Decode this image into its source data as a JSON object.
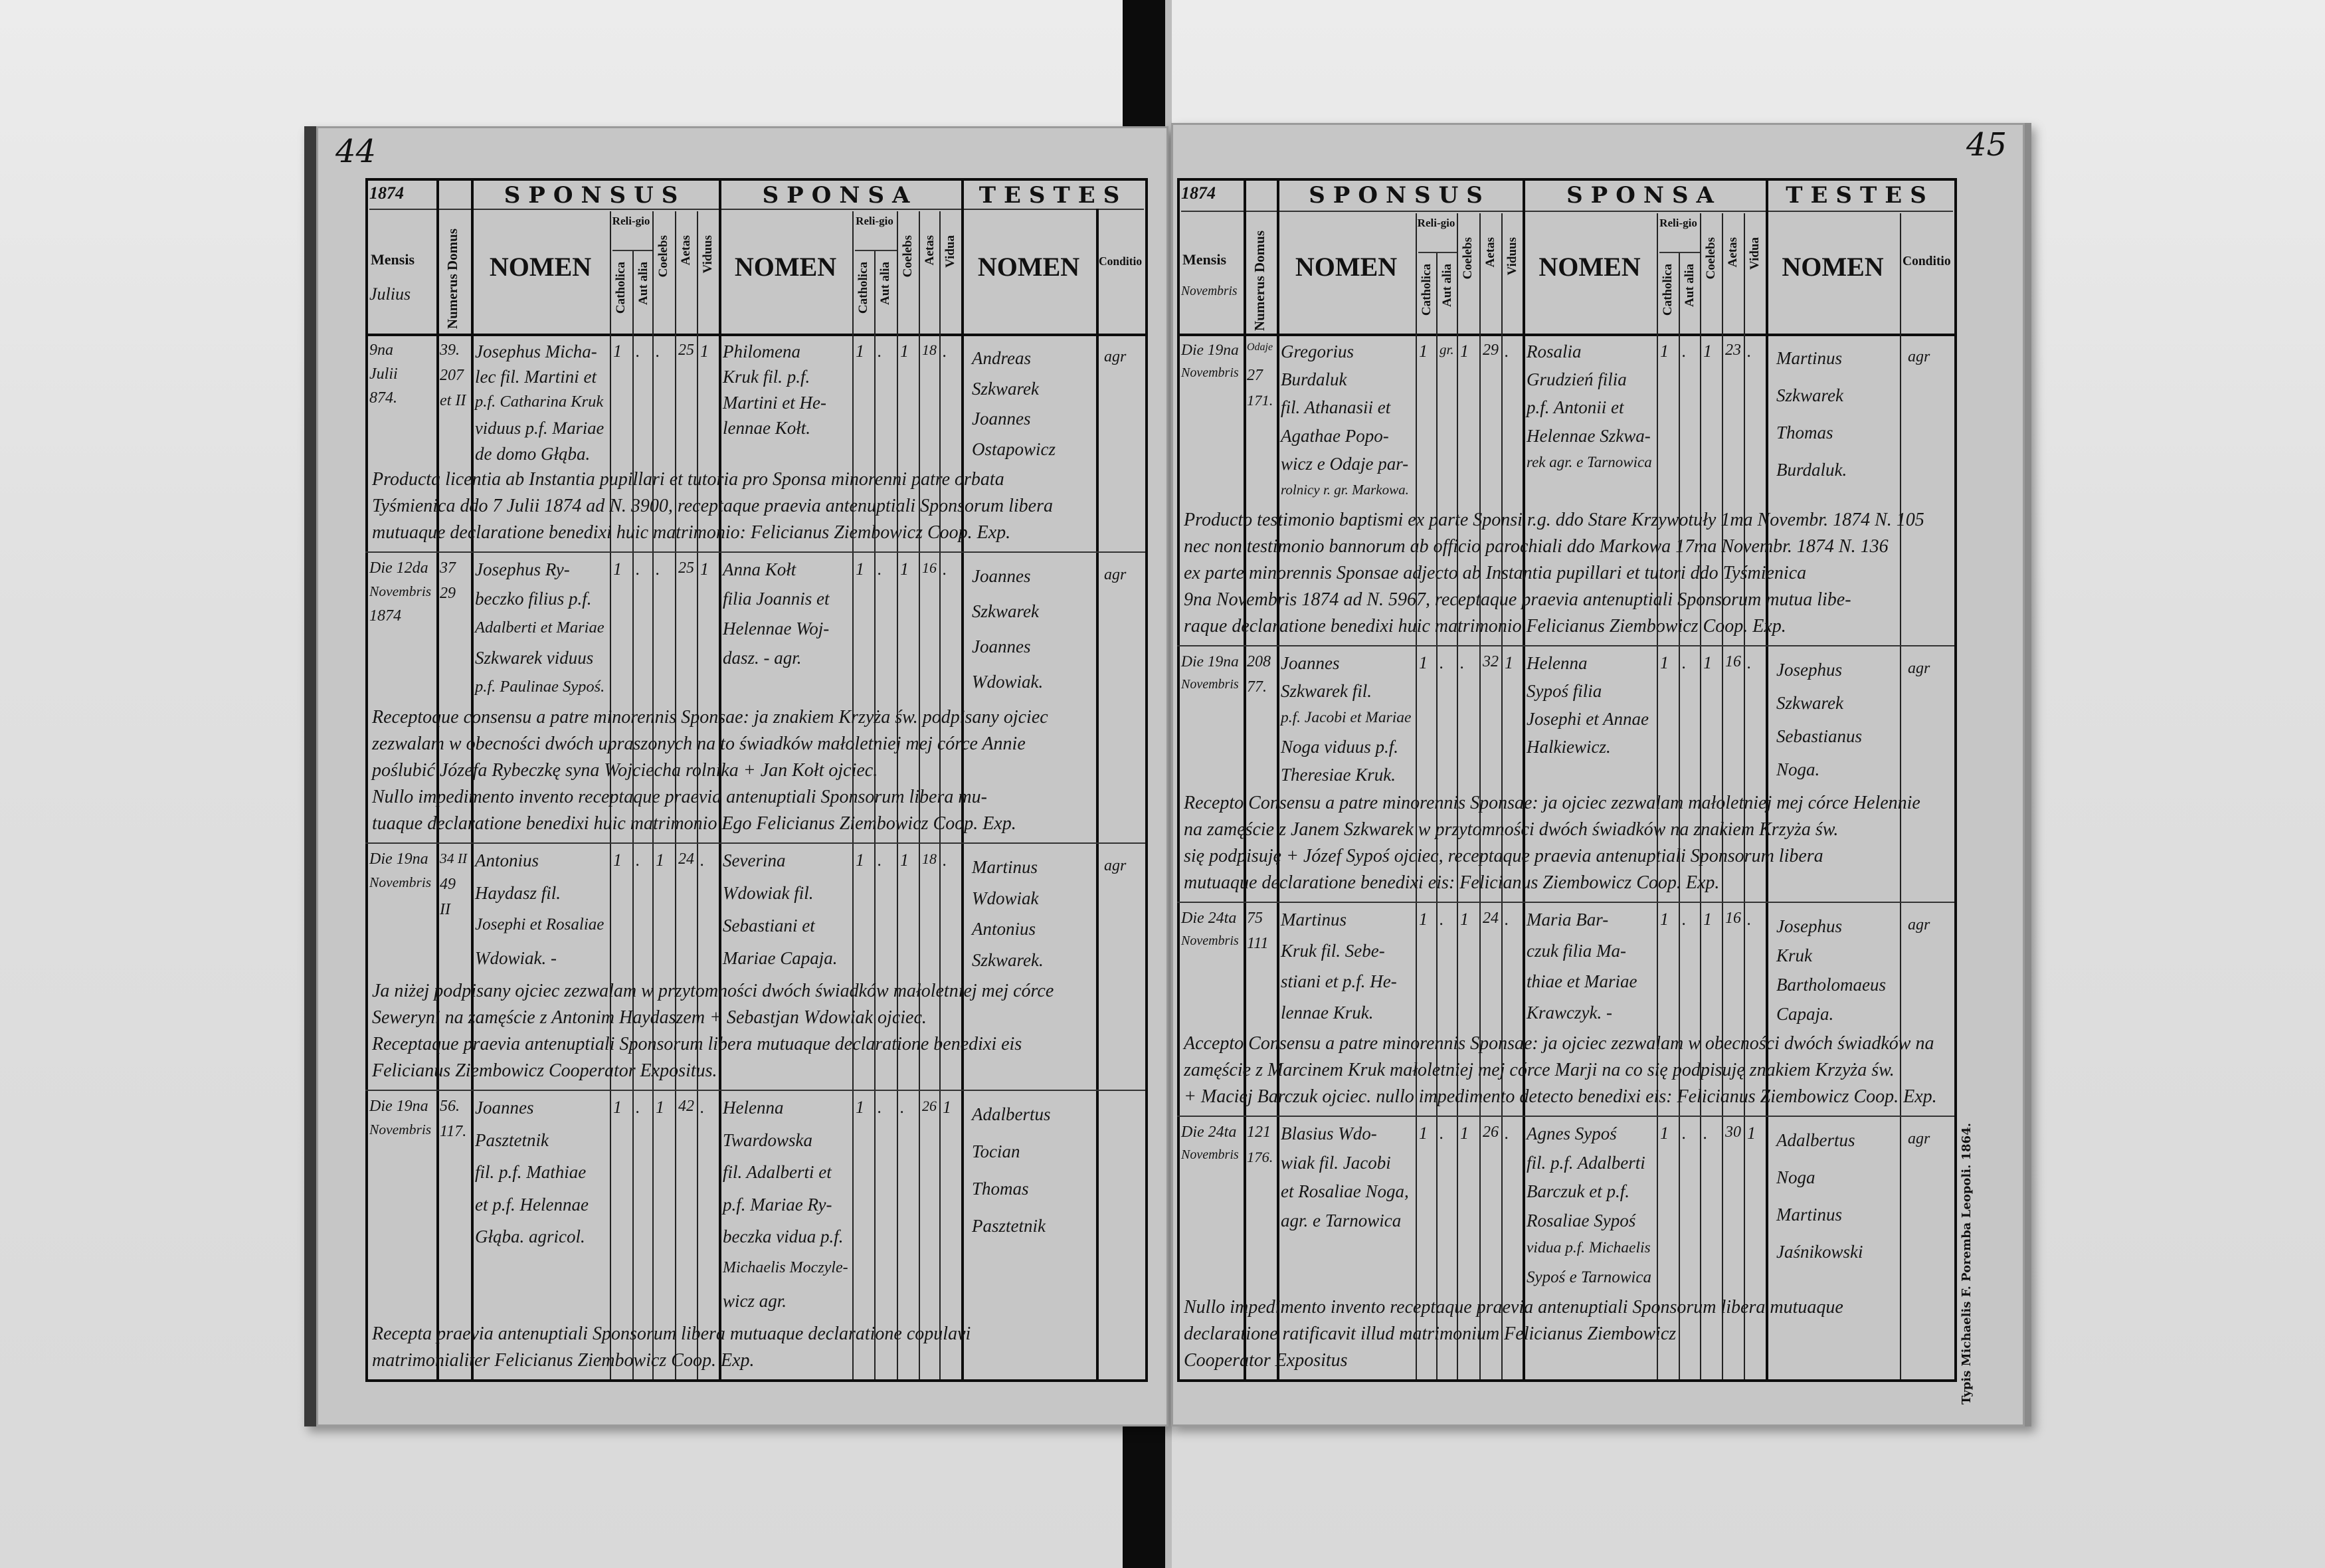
{
  "header": {
    "sponsus": "SPONSUS",
    "sponsa": "SPONSA",
    "testes": "TESTES",
    "nomen": "NOMEN",
    "mensis": "Mensis",
    "numerus_domus": "Numerus Domus",
    "religio": "Reli-gio",
    "catholica": "Catholica",
    "aut_alia": "Aut alia",
    "coelebs": "Coelebs",
    "aetas": "Aetas",
    "viduus": "Viduus",
    "vidua": "Vidua",
    "conditio": "Conditio"
  },
  "imprint": "Typis Michaelis F. Poremba Leopoli. 1864.",
  "pages": [
    {
      "page_number": "44",
      "year": "1874",
      "month": "Julius",
      "entries": [
        {
          "date": [
            "9na",
            "Julii",
            "874."
          ],
          "house": [
            "39.",
            "207",
            "et II"
          ],
          "groom": [
            "Josephus Micha-",
            "lec fil. Martini et",
            "p.f. Catharina Kruk",
            "viduus p.f. Mariae",
            "de domo Głąba."
          ],
          "groom_flags": [
            "1",
            ".",
            ".",
            "25",
            "1"
          ],
          "bride": [
            "Philomena",
            "Kruk fil. p.f.",
            "Martini et He-",
            "lennae Kołt."
          ],
          "bride_flags": [
            "1",
            ".",
            "1",
            "18",
            "."
          ],
          "witnesses": [
            "Andreas",
            "Szkwarek",
            "Joannes",
            "Ostapowicz"
          ],
          "conditio": "agr",
          "remarks": [
            "Producta licentia ab Instantia pupillari et tutoria pro Sponsa minorenni patre orbata",
            "Tyśmienica ddo 7 Julii 1874 ad N. 3900, receptaque praevia antenuptiali Sponsorum libera",
            "mutuaque declaratione benedixi huic matrimonio: Felicianus Ziembowicz Coop. Exp."
          ]
        },
        {
          "date": [
            "Die 12da",
            "Novembris",
            "1874"
          ],
          "house": [
            "37",
            "29"
          ],
          "groom": [
            "Josephus Ry-",
            "beczko filius p.f.",
            "Adalberti et Mariae",
            "Szkwarek viduus",
            "p.f. Paulinae Sypoś."
          ],
          "groom_flags": [
            "1",
            ".",
            ".",
            "25",
            "1"
          ],
          "bride": [
            "Anna Kołt",
            "filia Joannis et",
            "Helennae Woj-",
            "dasz. - agr."
          ],
          "bride_flags": [
            "1",
            ".",
            "1",
            "16",
            "."
          ],
          "witnesses": [
            "Joannes",
            "Szkwarek",
            "Joannes",
            "Wdowiak."
          ],
          "conditio": "agr",
          "remarks": [
            "Receptoque consensu a patre minorennis Sponsae: ja znakiem Krzyża św. podpisany ojciec",
            "zezwalam w obecności dwóch upraszonych na to świadków małoletniej mej córce Annie",
            "poślubić Józefa Rybeczkę syna Wojciecha rolnika + Jan Kołt ojciec.",
            "Nullo impedimento invento receptaque praevia antenuptiali Sponsorum libera mu-",
            "tuaque declaratione benedixi huic matrimonio Ego Felicianus Ziembowicz Coop. Exp."
          ]
        },
        {
          "date": [
            "Die 19na",
            "Novembris"
          ],
          "house": [
            "34 II",
            "49",
            "II"
          ],
          "groom": [
            "Antonius",
            "Haydasz fil.",
            "Josephi et Rosaliae",
            "Wdowiak. -"
          ],
          "groom_flags": [
            "1",
            ".",
            "1",
            "24",
            "."
          ],
          "bride": [
            "Severina",
            "Wdowiak fil.",
            "Sebastiani et",
            "Mariae Capaja."
          ],
          "bride_flags": [
            "1",
            ".",
            "1",
            "18",
            "."
          ],
          "witnesses": [
            "Martinus",
            "Wdowiak",
            "Antonius",
            "Szkwarek."
          ],
          "conditio": "agr",
          "remarks": [
            "Ja niżej podpisany ojciec zezwalam w przytomności dwóch świadków małoletniej mej córce",
            "Seweryni na zamęście z Antonim Haydaszem + Sebastjan Wdowiak ojciec.",
            "Receptaque praevia antenuptiali Sponsorum libera mutuaque declaratione benedixi eis",
            "Felicianus Ziembowicz Cooperator Expositus."
          ]
        },
        {
          "date": [
            "Die 19na",
            "Novembris"
          ],
          "house": [
            "56.",
            "117."
          ],
          "groom": [
            "Joannes",
            "Pasztetnik",
            "fil. p.f. Mathiae",
            "et p.f. Helennae",
            "Głąba. agricol."
          ],
          "groom_flags": [
            "1",
            ".",
            "1",
            "42",
            "."
          ],
          "bride": [
            "Helenna",
            "Twardowska",
            "fil. Adalberti et",
            "p.f. Mariae Ry-",
            "beczka vidua p.f.",
            "Michaelis Moczyle-",
            "wicz agr."
          ],
          "bride_flags": [
            "1",
            ".",
            ".",
            "26",
            "1"
          ],
          "witnesses": [
            "Adalbertus",
            "Tocian",
            "Thomas",
            "Pasztetnik"
          ],
          "conditio": "",
          "remarks": [
            "Recepta praevia antenuptiali Sponsorum libera mutuaque declaratione copulavi",
            "matrimonialiter Felicianus Ziembowicz Coop. Exp."
          ]
        }
      ]
    },
    {
      "page_number": "45",
      "year": "1874",
      "month": "Novembris",
      "entries": [
        {
          "date": [
            "Die 19na",
            "Novembris"
          ],
          "house": [
            "Odaje",
            "27",
            "171."
          ],
          "groom": [
            "Gregorius",
            "Burdaluk",
            "fil. Athanasii et",
            "Agathae Popo-",
            "wicz e Odaje par-",
            "rolnicy r. gr. Markowa."
          ],
          "groom_flags": [
            "1",
            "gr.",
            "1",
            "29",
            "."
          ],
          "bride": [
            "Rosalia",
            "Grudzień filia",
            "p.f. Antonii et",
            "Helennae Szkwa-",
            "rek agr. e Tarnowica"
          ],
          "bride_flags": [
            "1",
            ".",
            "1",
            "23",
            "."
          ],
          "witnesses": [
            "Martinus",
            "Szkwarek",
            "Thomas",
            "Burdaluk."
          ],
          "conditio": "agr",
          "remarks": [
            "Producto testimonio baptismi ex parte Sponsi r.g. ddo Stare Krzywotuły 1ma Novembr. 1874 N. 105",
            "nec non testimonio bannorum ab officio parochiali ddo Markowa 17ma Novembr. 1874 N. 136",
            "ex parte minorennis Sponsae adjecto ab Instantia pupillari et tutori ddo Tyśmienica",
            "9na Novembris 1874 ad N. 5967, receptaque praevia antenuptiali Sponsorum mutua libe-",
            "raque declaratione benedixi huic matrimonio Felicianus Ziembowicz Coop. Exp."
          ]
        },
        {
          "date": [
            "Die 19na",
            "Novembris"
          ],
          "house": [
            "208",
            "77."
          ],
          "groom": [
            "Joannes",
            "Szkwarek fil.",
            "p.f. Jacobi et Mariae",
            "Noga viduus p.f.",
            "Theresiae Kruk."
          ],
          "groom_flags": [
            "1",
            ".",
            ".",
            "32",
            "1"
          ],
          "bride": [
            "Helenna",
            "Sypoś filia",
            "Josephi et Annae",
            "Halkiewicz."
          ],
          "bride_flags": [
            "1",
            ".",
            "1",
            "16",
            "."
          ],
          "witnesses": [
            "Josephus",
            "Szkwarek",
            "Sebastianus",
            "Noga."
          ],
          "conditio": "agr",
          "remarks": [
            "Recepto Consensu a patre minorennis Sponsae: ja ojciec zezwalam małoletniej mej córce Helennie",
            "na zamęście z Janem Szkwarek w przytomności dwóch świadków na znakiem Krzyża św.",
            "się podpisuję + Józef Sypoś ojciec, receptaque praevia antenuptiali Sponsorum libera",
            "mutuaque declaratione benedixi eis: Felicianus Ziembowicz Coop. Exp."
          ]
        },
        {
          "date": [
            "Die 24ta",
            "Novembris"
          ],
          "house": [
            "75",
            "111"
          ],
          "groom": [
            "Martinus",
            "Kruk fil. Sebe-",
            "stiani et p.f. He-",
            "lennae Kruk."
          ],
          "groom_flags": [
            "1",
            ".",
            "1",
            "24",
            "."
          ],
          "bride": [
            "Maria Bar-",
            "czuk filia Ma-",
            "thiae et Mariae",
            "Krawczyk. -"
          ],
          "bride_flags": [
            "1",
            ".",
            "1",
            "16",
            "."
          ],
          "witnesses": [
            "Josephus",
            "Kruk",
            "Bartholomaeus",
            "Capaja."
          ],
          "conditio": "agr",
          "remarks": [
            "Accepto Consensu a patre minorennis Sponsae: ja ojciec zezwalam w obecności dwóch świadków na",
            "zamęście z Marcinem Kruk małoletniej mej córce Marji na co się podpisuję znakiem Krzyża św.",
            "+ Maciej Barczuk ojciec. nullo impedimento detecto benedixi eis: Felicianus Ziembowicz Coop. Exp."
          ]
        },
        {
          "date": [
            "Die 24ta",
            "Novembris"
          ],
          "house": [
            "121",
            "176."
          ],
          "groom": [
            "Blasius Wdo-",
            "wiak fil. Jacobi",
            "et Rosaliae Noga,",
            "agr. e Tarnowica"
          ],
          "groom_flags": [
            "1",
            ".",
            "1",
            "26",
            "."
          ],
          "bride": [
            "Agnes Sypoś",
            "fil. p.f. Adalberti",
            "Barczuk et p.f.",
            "Rosaliae Sypoś",
            "vidua p.f. Michaelis",
            "Sypoś e Tarnowica"
          ],
          "bride_flags": [
            "1",
            ".",
            ".",
            "30",
            "1"
          ],
          "witnesses": [
            "Adalbertus",
            "Noga",
            "Martinus",
            "Jaśnikowski"
          ],
          "conditio": "agr",
          "remarks": [
            "Nullo impedimento invento receptaque praevia antenuptiali Sponsorum libera mutuaque",
            "declaratione ratificavit illud matrimonium Felicianus Ziembowicz",
            "                         Cooperator Expositus"
          ]
        }
      ]
    }
  ]
}
